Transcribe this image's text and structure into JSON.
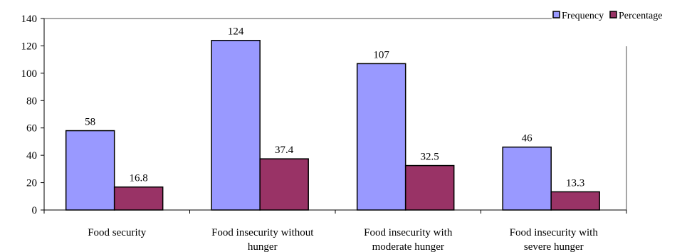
{
  "chart_data": {
    "type": "bar",
    "categories": [
      [
        "Food security"
      ],
      [
        "Food insecurity without",
        "hunger"
      ],
      [
        "Food insecurity with",
        "moderate hunger"
      ],
      [
        "Food insecurity with",
        "severe hunger"
      ]
    ],
    "series": [
      {
        "name": "Frequency",
        "values": [
          58,
          124,
          107,
          46
        ],
        "labels": [
          "58",
          "124",
          "107",
          "46"
        ],
        "color": "#9999FF"
      },
      {
        "name": "Percentage",
        "values": [
          16.8,
          37.4,
          32.5,
          13.3
        ],
        "labels": [
          "16.8",
          "37.4",
          "32.5",
          "13.3"
        ],
        "color": "#993366"
      }
    ],
    "ylim": [
      0,
      140
    ],
    "yticks": [
      0,
      20,
      40,
      60,
      80,
      100,
      120,
      140
    ],
    "grid": false,
    "legend_position": "top-right"
  }
}
